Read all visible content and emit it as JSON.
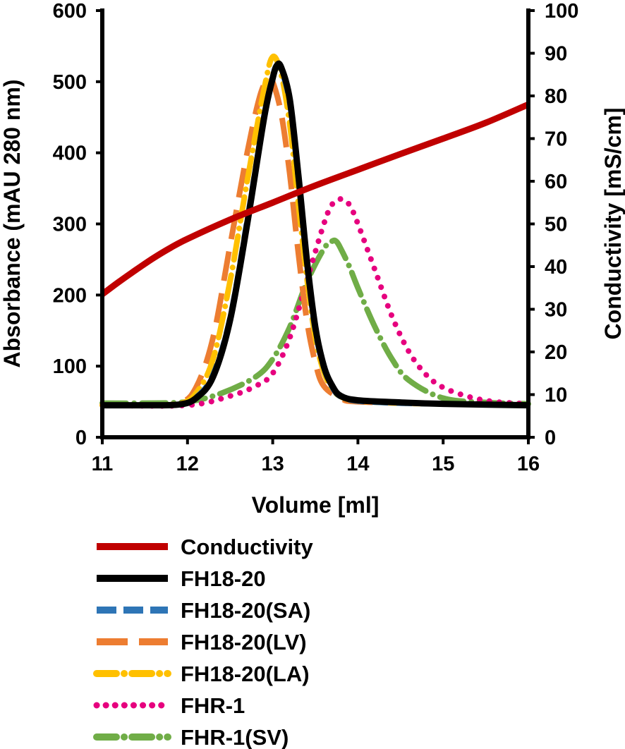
{
  "chart_data": {
    "type": "line",
    "title": "",
    "xlabel": "Volume [ml]",
    "ylabel": "Absorbance (mAU 280 nm)",
    "y2label": "Conductivity [mS/cm]",
    "xlim": [
      11,
      16
    ],
    "ylim": [
      0,
      600
    ],
    "y2lim": [
      0,
      100
    ],
    "x_ticks": [
      "11",
      "12",
      "13",
      "14",
      "15",
      "16"
    ],
    "y_ticks": [
      "0",
      "100",
      "200",
      "300",
      "400",
      "500",
      "600"
    ],
    "y2_ticks": [
      "0",
      "10",
      "20",
      "30",
      "40",
      "50",
      "60",
      "70",
      "80",
      "90",
      "100"
    ],
    "legend_position": "bottom",
    "series": [
      {
        "name": "Conductivity",
        "axis": "right",
        "color": "#c00000",
        "style": "solid",
        "x": [
          11.0,
          11.2,
          11.4,
          11.6,
          11.8,
          12.0,
          12.5,
          13.0,
          13.5,
          14.0,
          14.5,
          15.0,
          15.5,
          16.0
        ],
        "values": [
          33.5,
          36.5,
          39.3,
          42.0,
          44.4,
          46.5,
          51.0,
          55.0,
          59.0,
          62.7,
          66.4,
          70.0,
          73.7,
          78.0
        ]
      },
      {
        "name": "FH18-20",
        "axis": "left",
        "color": "#000000",
        "style": "solid",
        "x": [
          11.0,
          11.5,
          11.9,
          12.1,
          12.3,
          12.5,
          12.7,
          12.9,
          13.0,
          13.05,
          13.1,
          13.2,
          13.3,
          13.4,
          13.5,
          13.6,
          13.7,
          13.8,
          14.0,
          14.5,
          15.0,
          16.0
        ],
        "values": [
          45,
          45,
          46,
          55,
          85,
          165,
          300,
          450,
          505,
          523,
          520,
          475,
          370,
          250,
          155,
          100,
          72,
          58,
          52,
          49,
          47,
          45
        ]
      },
      {
        "name": "FH18-20(SA)",
        "axis": "left",
        "color": "#2e75b6",
        "style": "dashed",
        "x": [
          11.0,
          11.5,
          11.9,
          12.1,
          12.3,
          12.5,
          12.7,
          12.9,
          13.0,
          13.05,
          13.1,
          13.2,
          13.3,
          13.4,
          13.5,
          13.6,
          13.7,
          13.8,
          14.0,
          14.5,
          15.0,
          16.0
        ],
        "values": [
          45,
          45,
          46,
          56,
          88,
          168,
          305,
          452,
          507,
          521,
          517,
          470,
          365,
          245,
          150,
          98,
          70,
          57,
          51,
          48,
          47,
          45
        ]
      },
      {
        "name": "FH18-20(LV)",
        "axis": "left",
        "color": "#ed7d31",
        "style": "longdash",
        "x": [
          11.0,
          11.5,
          11.9,
          12.1,
          12.3,
          12.5,
          12.7,
          12.85,
          12.95,
          13.0,
          13.1,
          13.2,
          13.3,
          13.4,
          13.5,
          13.6,
          13.8,
          14.0,
          15.0,
          16.0
        ],
        "values": [
          45,
          45,
          48,
          70,
          140,
          270,
          400,
          480,
          505,
          500,
          455,
          370,
          260,
          165,
          105,
          72,
          55,
          50,
          47,
          45
        ]
      },
      {
        "name": "FH18-20(LA)",
        "axis": "left",
        "color": "#ffc000",
        "style": "dashdot",
        "x": [
          11.0,
          11.5,
          11.9,
          12.1,
          12.3,
          12.5,
          12.7,
          12.9,
          13.0,
          13.1,
          13.2,
          13.3,
          13.4,
          13.5,
          13.6,
          13.7,
          13.8,
          14.0,
          14.5,
          15.0,
          16.0
        ],
        "values": [
          45,
          45,
          47,
          62,
          110,
          220,
          360,
          490,
          535,
          510,
          440,
          330,
          225,
          140,
          92,
          68,
          57,
          51,
          48,
          47,
          45
        ]
      },
      {
        "name": "FHR-1",
        "axis": "left",
        "color": "#e6007e",
        "style": "dotted",
        "x": [
          11.0,
          12.0,
          12.5,
          12.8,
          13.0,
          13.2,
          13.4,
          13.6,
          13.7,
          13.8,
          13.9,
          14.0,
          14.2,
          14.4,
          14.6,
          14.8,
          15.0,
          15.3,
          15.6,
          16.0
        ],
        "values": [
          45,
          45,
          58,
          72,
          90,
          140,
          220,
          300,
          328,
          335,
          327,
          300,
          235,
          170,
          120,
          88,
          70,
          57,
          50,
          47
        ]
      },
      {
        "name": "FHR-1(SV)",
        "axis": "left",
        "color": "#70ad47",
        "style": "dashdot",
        "x": [
          11.0,
          11.5,
          12.0,
          12.4,
          12.8,
          13.0,
          13.2,
          13.4,
          13.6,
          13.7,
          13.75,
          13.8,
          13.9,
          14.0,
          14.2,
          14.4,
          14.6,
          15.0,
          15.5,
          16.0
        ],
        "values": [
          48,
          48,
          50,
          62,
          85,
          110,
          155,
          218,
          265,
          276,
          275,
          265,
          240,
          210,
          155,
          110,
          80,
          55,
          49,
          47
        ]
      }
    ]
  }
}
